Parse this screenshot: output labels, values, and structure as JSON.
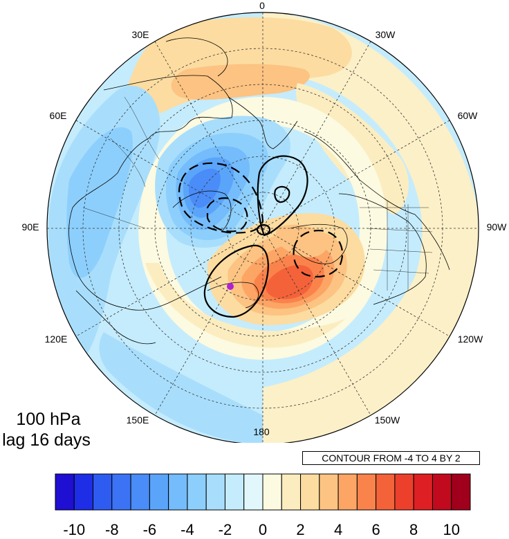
{
  "figure": {
    "level_label": "100 hPa",
    "lag_label": "lag 16 days",
    "contour_note": "CONTOUR FROM -4 TO 4 BY 2"
  },
  "longitude_labels": {
    "lon_0": "0",
    "lon_30w": "30W",
    "lon_60w": "60W",
    "lon_90w": "90W",
    "lon_120w": "120W",
    "lon_150w": "150W",
    "lon_180": "180",
    "lon_150e": "150E",
    "lon_120e": "120E",
    "lon_90e": "90E",
    "lon_60e": "60E",
    "lon_30e": "30E"
  },
  "colorbar": {
    "colors": [
      "#1e0fd2",
      "#1e2ee6",
      "#2e5cf0",
      "#3c73f5",
      "#4a8cf8",
      "#5aa5fa",
      "#74bcfb",
      "#8dcffc",
      "#a8defc",
      "#c5ecfc",
      "#e2f7fc",
      "#fcfae0",
      "#fcedc0",
      "#fcdca0",
      "#fcc382",
      "#fca565",
      "#fa834c",
      "#f4623a",
      "#ec402c",
      "#de2024",
      "#c20a1e",
      "#a0001c"
    ],
    "tick_labels": [
      "-10",
      "-8",
      "-6",
      "-4",
      "-2",
      "0",
      "2",
      "4",
      "6",
      "8",
      "10"
    ]
  },
  "marker": {
    "color": "#b020d8"
  }
}
